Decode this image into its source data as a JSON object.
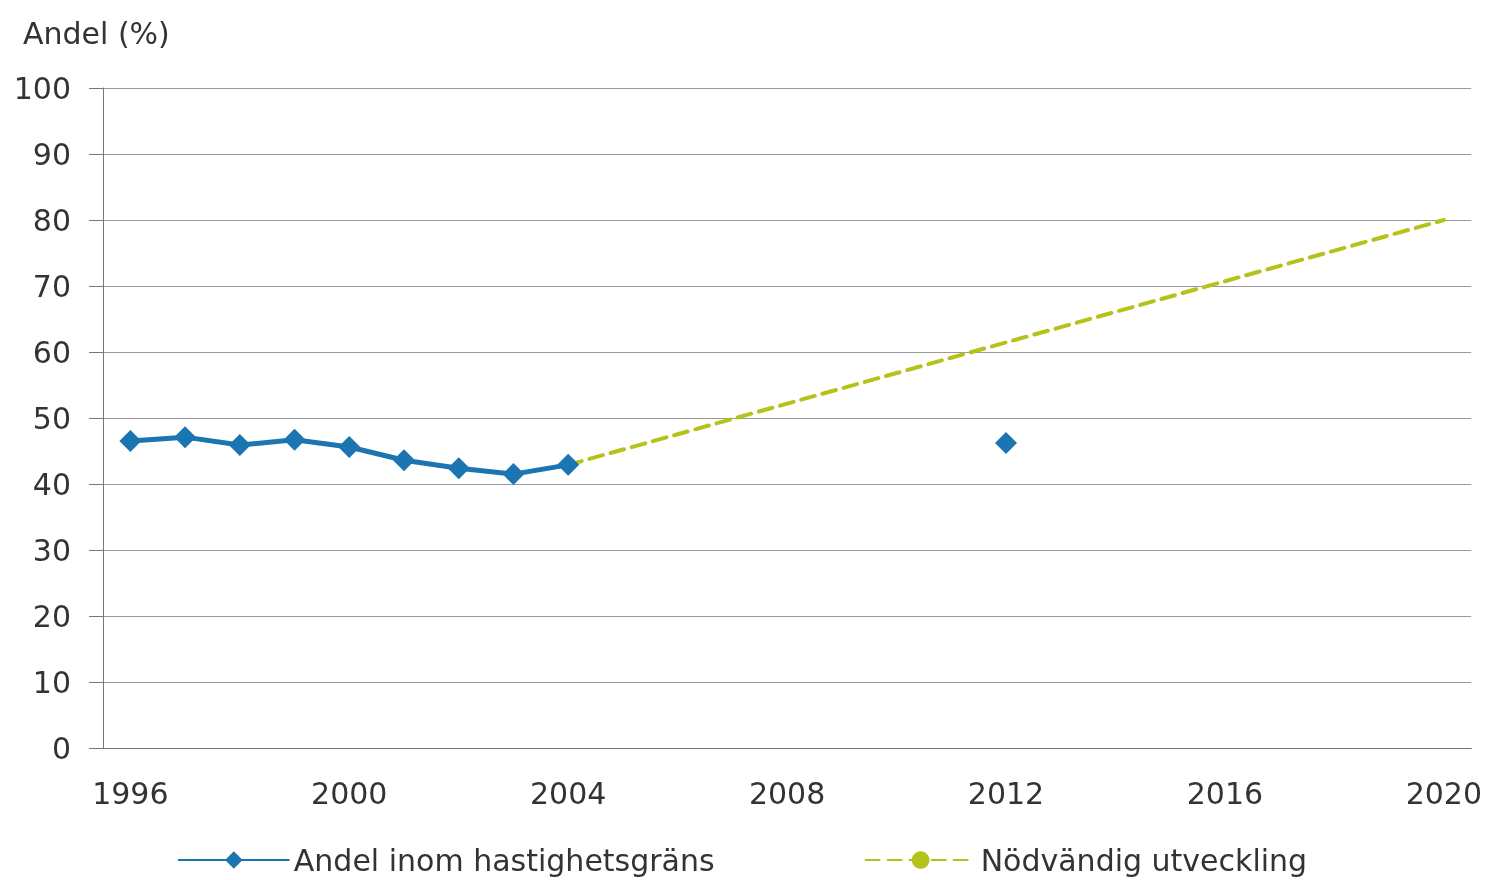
{
  "chart_data": {
    "type": "line",
    "ylabel": "Andel (%)",
    "categories": [
      "1996",
      null,
      null,
      null,
      "2000",
      null,
      null,
      null,
      "2004",
      null,
      null,
      null,
      "2008",
      null,
      null,
      null,
      "2012",
      null,
      null,
      null,
      "2016",
      null,
      null,
      null,
      "2020"
    ],
    "series": [
      {
        "name": "Andel inom hastighetsgräns",
        "color": "#1a75b0",
        "marker": "diamond",
        "line_style": "solid",
        "values": [
          46.5,
          47.1,
          45.9,
          46.7,
          45.6,
          43.6,
          42.4,
          41.5,
          42.9,
          null,
          null,
          null,
          null,
          null,
          null,
          null,
          46.2,
          null,
          null,
          null,
          null,
          null,
          null,
          null,
          null
        ]
      },
      {
        "name": "Nödvändig utveckling",
        "color": "#b5c21a",
        "marker": "none",
        "line_style": "dashed",
        "values": [
          null,
          null,
          null,
          null,
          null,
          null,
          null,
          null,
          42.9,
          null,
          null,
          null,
          null,
          null,
          null,
          null,
          null,
          null,
          null,
          null,
          null,
          null,
          null,
          null,
          80
        ]
      }
    ],
    "ylim": [
      0,
      100
    ],
    "yticks": [
      0,
      10,
      20,
      30,
      40,
      50,
      60,
      70,
      80,
      90,
      100
    ],
    "grid": "y",
    "legend": "bottom"
  }
}
